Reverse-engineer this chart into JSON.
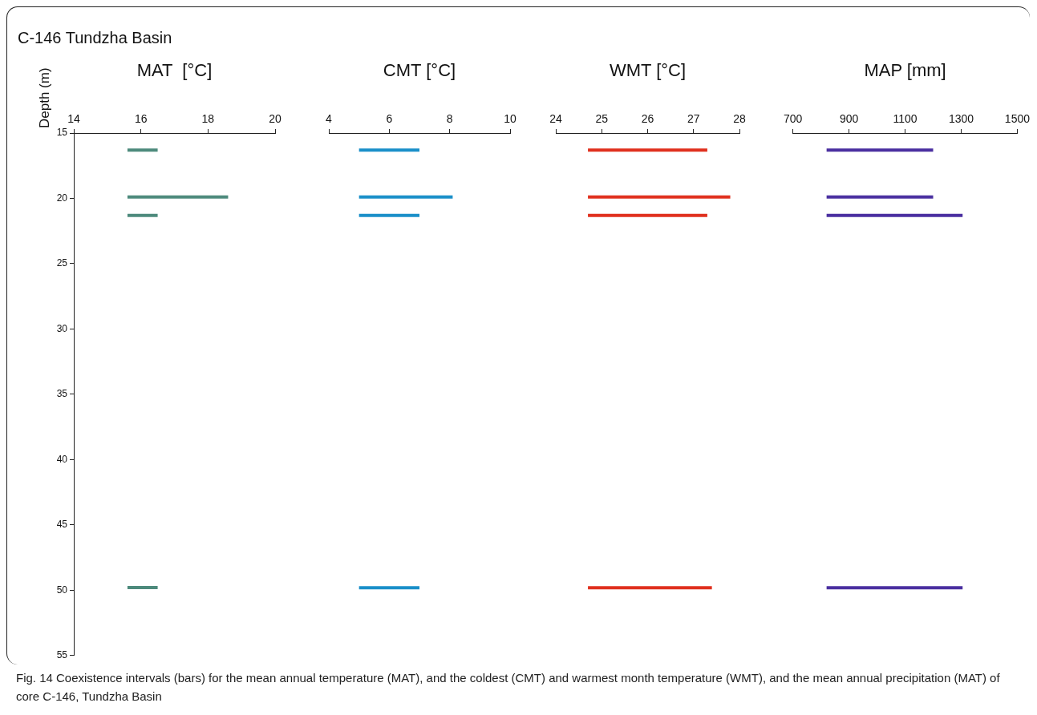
{
  "chart_data": [
    {
      "type": "line",
      "title": "C-146 Tundzha Basin",
      "xlabel": "MAT  [°C]",
      "ylabel": "Depth (m)",
      "xlim": [
        14,
        20
      ],
      "xticks": [
        14,
        16,
        18,
        20
      ],
      "ylim": [
        55,
        15
      ],
      "yticks": [
        15,
        20,
        25,
        30,
        35,
        40,
        45,
        50,
        55
      ],
      "grid": false,
      "legend": false,
      "annotations": [
        "Fig. 14 Coexistence intervals (bars) for the mean annual temperature (MAT), and the coldest (CMT) and warmest month temperature (WMT), and the mean annual precipitation (MAT) of core C-146, Tundzha Basin"
      ],
      "series": [
        {
          "color": "#4d8a7c",
          "x": [
            15.6,
            16.5
          ],
          "values": [
            16.3,
            16.3
          ]
        },
        {
          "color": "#4d8a7c",
          "x": [
            15.6,
            18.6
          ],
          "values": [
            19.9,
            19.9
          ]
        },
        {
          "color": "#4d8a7c",
          "x": [
            15.6,
            16.5
          ],
          "values": [
            21.3,
            21.3
          ]
        },
        {
          "color": "#4d8a7c",
          "x": [
            15.6,
            16.5
          ],
          "values": [
            49.8,
            49.8
          ]
        }
      ]
    },
    {
      "type": "line",
      "xlabel": "CMT [°C]",
      "xlim": [
        4,
        10
      ],
      "xticks": [
        4,
        6,
        8,
        10
      ],
      "ylim": [
        55,
        15
      ],
      "tick_labels": "x",
      "grid": false,
      "legend": false,
      "series": [
        {
          "color": "#1a8fc9",
          "x": [
            5.0,
            7.0
          ],
          "values": [
            16.3,
            16.3
          ]
        },
        {
          "color": "#1a8fc9",
          "x": [
            5.0,
            8.1
          ],
          "values": [
            19.9,
            19.9
          ]
        },
        {
          "color": "#1a8fc9",
          "x": [
            5.0,
            7.0
          ],
          "values": [
            21.3,
            21.3
          ]
        },
        {
          "color": "#1a8fc9",
          "x": [
            5.0,
            7.0
          ],
          "values": [
            49.8,
            49.8
          ]
        }
      ]
    },
    {
      "type": "line",
      "xlabel": "WMT [°C]",
      "xlim": [
        24,
        28
      ],
      "xticks": [
        24,
        25,
        26,
        27,
        28
      ],
      "ylim": [
        55,
        15
      ],
      "tick_labels": "x",
      "grid": false,
      "legend": false,
      "series": [
        {
          "color": "#e0301e",
          "x": [
            24.7,
            27.3
          ],
          "values": [
            16.3,
            16.3
          ]
        },
        {
          "color": "#e0301e",
          "x": [
            24.7,
            27.8
          ],
          "values": [
            19.9,
            19.9
          ]
        },
        {
          "color": "#e0301e",
          "x": [
            24.7,
            27.3
          ],
          "values": [
            21.3,
            21.3
          ]
        },
        {
          "color": "#e0301e",
          "x": [
            24.7,
            27.4
          ],
          "values": [
            49.8,
            49.8
          ]
        }
      ]
    },
    {
      "type": "line",
      "xlabel": "MAP [mm]",
      "xlim": [
        700,
        1500
      ],
      "xticks": [
        700,
        900,
        1100,
        1300,
        1500
      ],
      "ylim": [
        55,
        15
      ],
      "tick_labels": "x",
      "grid": false,
      "legend": false,
      "series": [
        {
          "color": "#4a2fa0",
          "x": [
            820,
            1200
          ],
          "values": [
            16.3,
            16.3
          ]
        },
        {
          "color": "#4a2fa0",
          "x": [
            820,
            1200
          ],
          "values": [
            19.9,
            19.9
          ]
        },
        {
          "color": "#4a2fa0",
          "x": [
            820,
            1305
          ],
          "values": [
            21.3,
            21.3
          ]
        },
        {
          "color": "#4a2fa0",
          "x": [
            820,
            1305
          ],
          "values": [
            49.8,
            49.8
          ]
        }
      ]
    }
  ]
}
